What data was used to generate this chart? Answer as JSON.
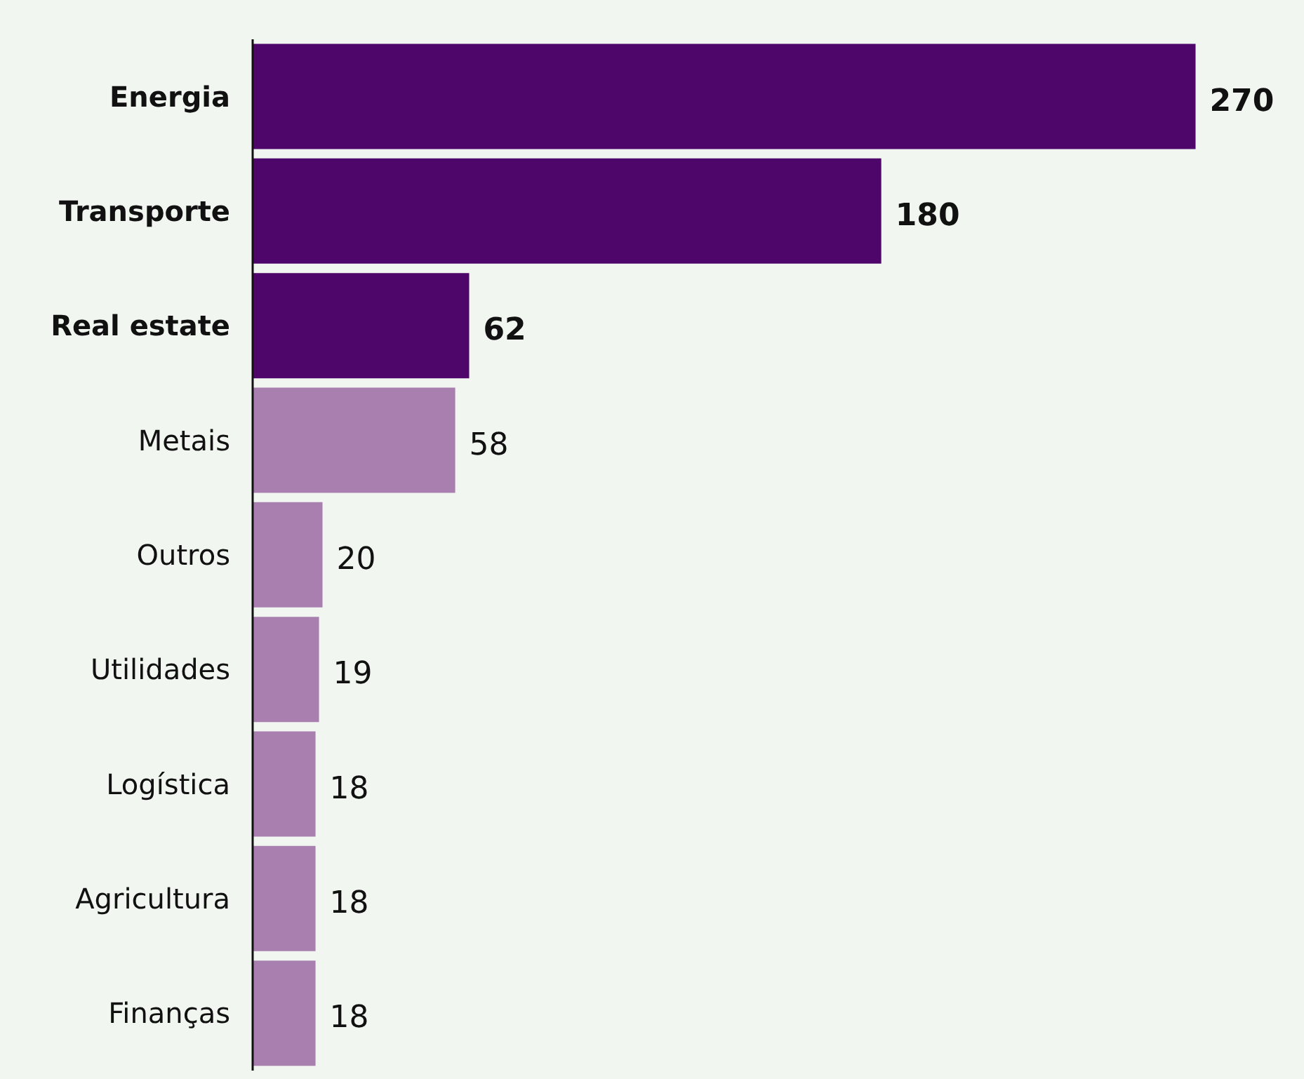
{
  "chart_data": {
    "type": "bar",
    "orientation": "horizontal",
    "categories": [
      "Energia",
      "Transporte",
      "Real estate",
      "Metais",
      "Outros",
      "Utilidades",
      "Logística",
      "Agricultura",
      "Finanças"
    ],
    "values": [
      270,
      180,
      62,
      58,
      20,
      19,
      18,
      18,
      18
    ],
    "colors": [
      "#4f066b",
      "#4f066b",
      "#4f066b",
      "#a97fb0",
      "#a97fb0",
      "#a97fb0",
      "#a97fb0",
      "#a97fb0",
      "#a97fb0"
    ],
    "data_labels": true
  }
}
